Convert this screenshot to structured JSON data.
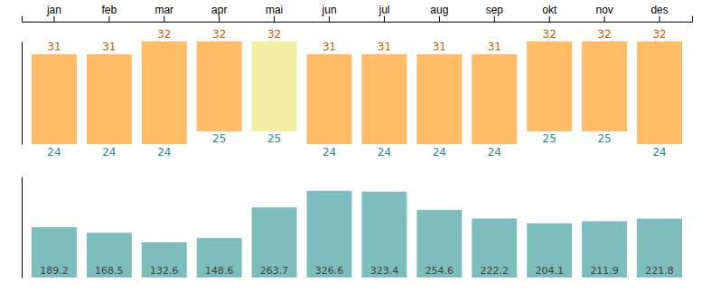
{
  "chart_data": {
    "type": "bar",
    "categories": [
      "jan",
      "feb",
      "mar",
      "apr",
      "mai",
      "jun",
      "jul",
      "aug",
      "sep",
      "okt",
      "nov",
      "des"
    ],
    "series": [
      {
        "values": [
          31,
          31,
          32,
          32,
          32,
          31,
          31,
          31,
          31,
          32,
          32,
          32
        ],
        "low": [
          24,
          24,
          24,
          25,
          25,
          24,
          24,
          24,
          24,
          25,
          25,
          24
        ],
        "colors": [
          "#FFBB66",
          "#FFBB66",
          "#FFBB66",
          "#FFBB66",
          "#F0F0A0",
          "#FFBB66",
          "#FFBB66",
          "#FFBB66",
          "#FFBB66",
          "#FFBB66",
          "#FFBB66",
          "#FFBB66"
        ]
      },
      {
        "values": [
          189.2,
          168.5,
          132.6,
          148.6,
          263.7,
          326.6,
          323.4,
          254.6,
          222.2,
          204.1,
          211.9,
          221.8
        ],
        "color": "#7DBDBD",
        "axis": "y2"
      }
    ],
    "ylim": [
      24,
      32
    ],
    "y2lim": [
      0,
      380
    ],
    "data_labels": true,
    "tick_labels": "x"
  }
}
